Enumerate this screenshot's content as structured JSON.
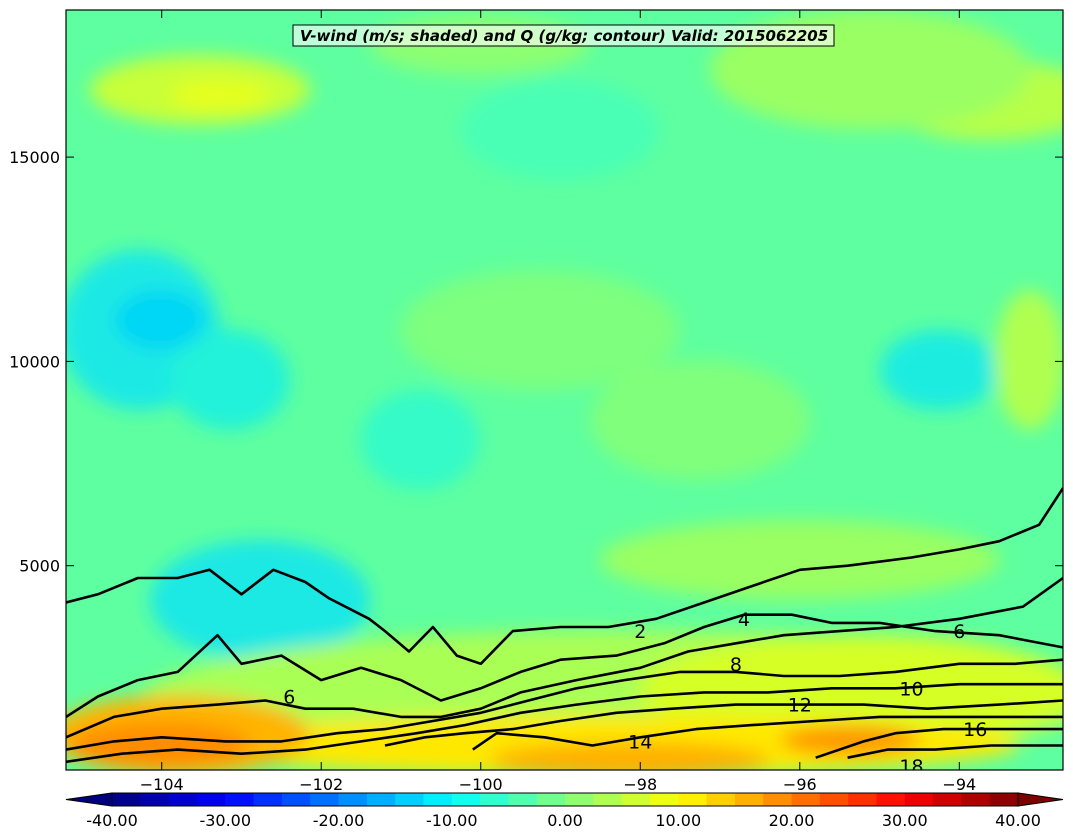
{
  "chart_data": {
    "type": "heatmap",
    "title": "V-wind (m/s; shaded) and Q (g/kg; contour) Valid: 2015062205",
    "xlabel": "",
    "ylabel": "",
    "xlim": [
      -105.2,
      -92.7
    ],
    "ylim": [
      0,
      18600
    ],
    "x_ticks": [
      -104,
      -102,
      -100,
      -98,
      -96,
      -94
    ],
    "x_tick_labels": [
      "−104",
      "−102",
      "−100",
      "−98",
      "−96",
      "−94"
    ],
    "y_ticks": [
      5000,
      10000,
      15000
    ],
    "y_tick_labels": [
      "5000",
      "10000",
      "15000"
    ],
    "colorbar": {
      "min": -40,
      "max": 40,
      "step": 2.5,
      "tick_values": [
        -40,
        -30,
        -20,
        -10,
        0,
        10,
        20,
        30,
        40
      ],
      "tick_labels": [
        "-40.00",
        "-30.00",
        "-20.00",
        "-10.00",
        "0.00",
        "10.00",
        "20.00",
        "30.00",
        "40.00"
      ],
      "extend": "both",
      "colormap": "jet"
    },
    "contours": [
      {
        "level": 2,
        "label": "2",
        "points": [
          [
            -105.2,
            4100
          ],
          [
            -104.8,
            4300
          ],
          [
            -104.3,
            4700
          ],
          [
            -103.8,
            4700
          ],
          [
            -103.4,
            4900
          ],
          [
            -103.0,
            4300
          ],
          [
            -102.6,
            4900
          ],
          [
            -102.2,
            4600
          ],
          [
            -101.9,
            4200
          ],
          [
            -101.4,
            3700
          ],
          [
            -101.2,
            3400
          ],
          [
            -100.9,
            2900
          ],
          [
            -100.6,
            3500
          ],
          [
            -100.3,
            2800
          ],
          [
            -100.0,
            2600
          ],
          [
            -99.6,
            3400
          ],
          [
            -99.0,
            3500
          ],
          [
            -98.4,
            3500
          ],
          [
            -97.8,
            3700
          ],
          [
            -97.2,
            4100
          ],
          [
            -96.6,
            4500
          ],
          [
            -96.0,
            4900
          ],
          [
            -95.4,
            5000
          ],
          [
            -94.6,
            5200
          ],
          [
            -94.0,
            5400
          ],
          [
            -93.5,
            5600
          ],
          [
            -93.0,
            6000
          ],
          [
            -92.7,
            6900
          ]
        ]
      },
      {
        "level": 4,
        "label": "4",
        "points": [
          [
            -105.2,
            1300
          ],
          [
            -104.8,
            1800
          ],
          [
            -104.3,
            2200
          ],
          [
            -103.8,
            2400
          ],
          [
            -103.3,
            3300
          ],
          [
            -103.0,
            2600
          ],
          [
            -102.5,
            2800
          ],
          [
            -102.0,
            2200
          ],
          [
            -101.5,
            2500
          ],
          [
            -101.0,
            2200
          ],
          [
            -100.5,
            1700
          ],
          [
            -100.0,
            2000
          ],
          [
            -99.5,
            2400
          ],
          [
            -99.0,
            2700
          ],
          [
            -98.3,
            2800
          ],
          [
            -97.7,
            3100
          ],
          [
            -97.2,
            3500
          ],
          [
            -96.7,
            3800
          ],
          [
            -96.1,
            3800
          ],
          [
            -95.6,
            3600
          ],
          [
            -95.0,
            3600
          ],
          [
            -94.3,
            3400
          ],
          [
            -93.5,
            3300
          ],
          [
            -92.7,
            3000
          ]
        ]
      },
      {
        "level": 6,
        "label": "6",
        "points": [
          [
            -105.2,
            800
          ],
          [
            -104.6,
            1300
          ],
          [
            -104.0,
            1500
          ],
          [
            -103.3,
            1600
          ],
          [
            -102.7,
            1700
          ],
          [
            -102.2,
            1500
          ],
          [
            -101.6,
            1500
          ],
          [
            -101.0,
            1300
          ],
          [
            -100.5,
            1300
          ],
          [
            -100.0,
            1500
          ],
          [
            -99.5,
            1900
          ],
          [
            -98.8,
            2200
          ],
          [
            -98.0,
            2500
          ],
          [
            -97.4,
            2900
          ],
          [
            -96.8,
            3100
          ],
          [
            -96.2,
            3300
          ],
          [
            -95.5,
            3400
          ],
          [
            -94.8,
            3500
          ],
          [
            -94.0,
            3700
          ],
          [
            -93.2,
            4000
          ],
          [
            -92.7,
            4700
          ]
        ]
      },
      {
        "level": 8,
        "label": "8",
        "points": [
          [
            -105.2,
            500
          ],
          [
            -104.6,
            700
          ],
          [
            -104.0,
            800
          ],
          [
            -103.2,
            700
          ],
          [
            -102.5,
            700
          ],
          [
            -101.8,
            900
          ],
          [
            -101.2,
            1000
          ],
          [
            -100.6,
            1200
          ],
          [
            -100.0,
            1400
          ],
          [
            -99.4,
            1700
          ],
          [
            -98.8,
            2000
          ],
          [
            -98.2,
            2200
          ],
          [
            -97.5,
            2400
          ],
          [
            -96.8,
            2400
          ],
          [
            -96.2,
            2300
          ],
          [
            -95.5,
            2300
          ],
          [
            -94.8,
            2400
          ],
          [
            -94.0,
            2600
          ],
          [
            -93.3,
            2600
          ],
          [
            -92.7,
            2700
          ]
        ]
      },
      {
        "level": 10,
        "label": "10",
        "points": [
          [
            -105.2,
            200
          ],
          [
            -104.5,
            400
          ],
          [
            -103.8,
            500
          ],
          [
            -103.0,
            400
          ],
          [
            -102.2,
            500
          ],
          [
            -101.5,
            700
          ],
          [
            -100.8,
            900
          ],
          [
            -100.2,
            1100
          ],
          [
            -99.5,
            1400
          ],
          [
            -98.8,
            1600
          ],
          [
            -98.0,
            1800
          ],
          [
            -97.2,
            1900
          ],
          [
            -96.4,
            1900
          ],
          [
            -95.6,
            2000
          ],
          [
            -94.8,
            2000
          ],
          [
            -94.0,
            2100
          ],
          [
            -93.3,
            2100
          ],
          [
            -92.7,
            2100
          ]
        ]
      },
      {
        "level": 12,
        "label": "12",
        "points": [
          [
            -101.2,
            600
          ],
          [
            -100.7,
            800
          ],
          [
            -100.2,
            900
          ],
          [
            -99.6,
            1000
          ],
          [
            -99.0,
            1200
          ],
          [
            -98.3,
            1400
          ],
          [
            -97.6,
            1500
          ],
          [
            -96.8,
            1600
          ],
          [
            -96.0,
            1600
          ],
          [
            -95.2,
            1600
          ],
          [
            -94.4,
            1500
          ],
          [
            -93.5,
            1600
          ],
          [
            -92.7,
            1700
          ]
        ]
      },
      {
        "level": 14,
        "label": "14",
        "points": [
          [
            -100.1,
            500
          ],
          [
            -99.8,
            900
          ],
          [
            -99.2,
            800
          ],
          [
            -98.6,
            600
          ],
          [
            -98.0,
            800
          ],
          [
            -97.3,
            1000
          ],
          [
            -96.6,
            1100
          ],
          [
            -95.8,
            1200
          ],
          [
            -95.0,
            1300
          ],
          [
            -94.2,
            1300
          ],
          [
            -93.4,
            1300
          ],
          [
            -92.7,
            1300
          ]
        ]
      },
      {
        "level": 16,
        "label": "16",
        "points": [
          [
            -95.8,
            300
          ],
          [
            -95.2,
            700
          ],
          [
            -94.8,
            900
          ],
          [
            -94.2,
            1000
          ],
          [
            -93.5,
            1000
          ],
          [
            -92.7,
            1000
          ]
        ]
      },
      {
        "level": 18,
        "label": "18",
        "points": [
          [
            -95.4,
            300
          ],
          [
            -94.9,
            500
          ],
          [
            -94.3,
            500
          ],
          [
            -93.6,
            600
          ],
          [
            -92.7,
            600
          ]
        ]
      }
    ],
    "contour_labels": [
      {
        "text": "2",
        "x": -98.0,
        "y": 3400
      },
      {
        "text": "4",
        "x": -96.7,
        "y": 3700
      },
      {
        "text": "6",
        "x": -94.0,
        "y": 3400
      },
      {
        "text": "6",
        "x": -102.4,
        "y": 1800
      },
      {
        "text": "8",
        "x": -96.8,
        "y": 2600
      },
      {
        "text": "10",
        "x": -94.6,
        "y": 2000
      },
      {
        "text": "12",
        "x": -96.0,
        "y": 1600
      },
      {
        "text": "14",
        "x": -98.0,
        "y": 700
      },
      {
        "text": "16",
        "x": -93.8,
        "y": 1000
      },
      {
        "text": "18",
        "x": -94.6,
        "y": 100
      }
    ]
  }
}
